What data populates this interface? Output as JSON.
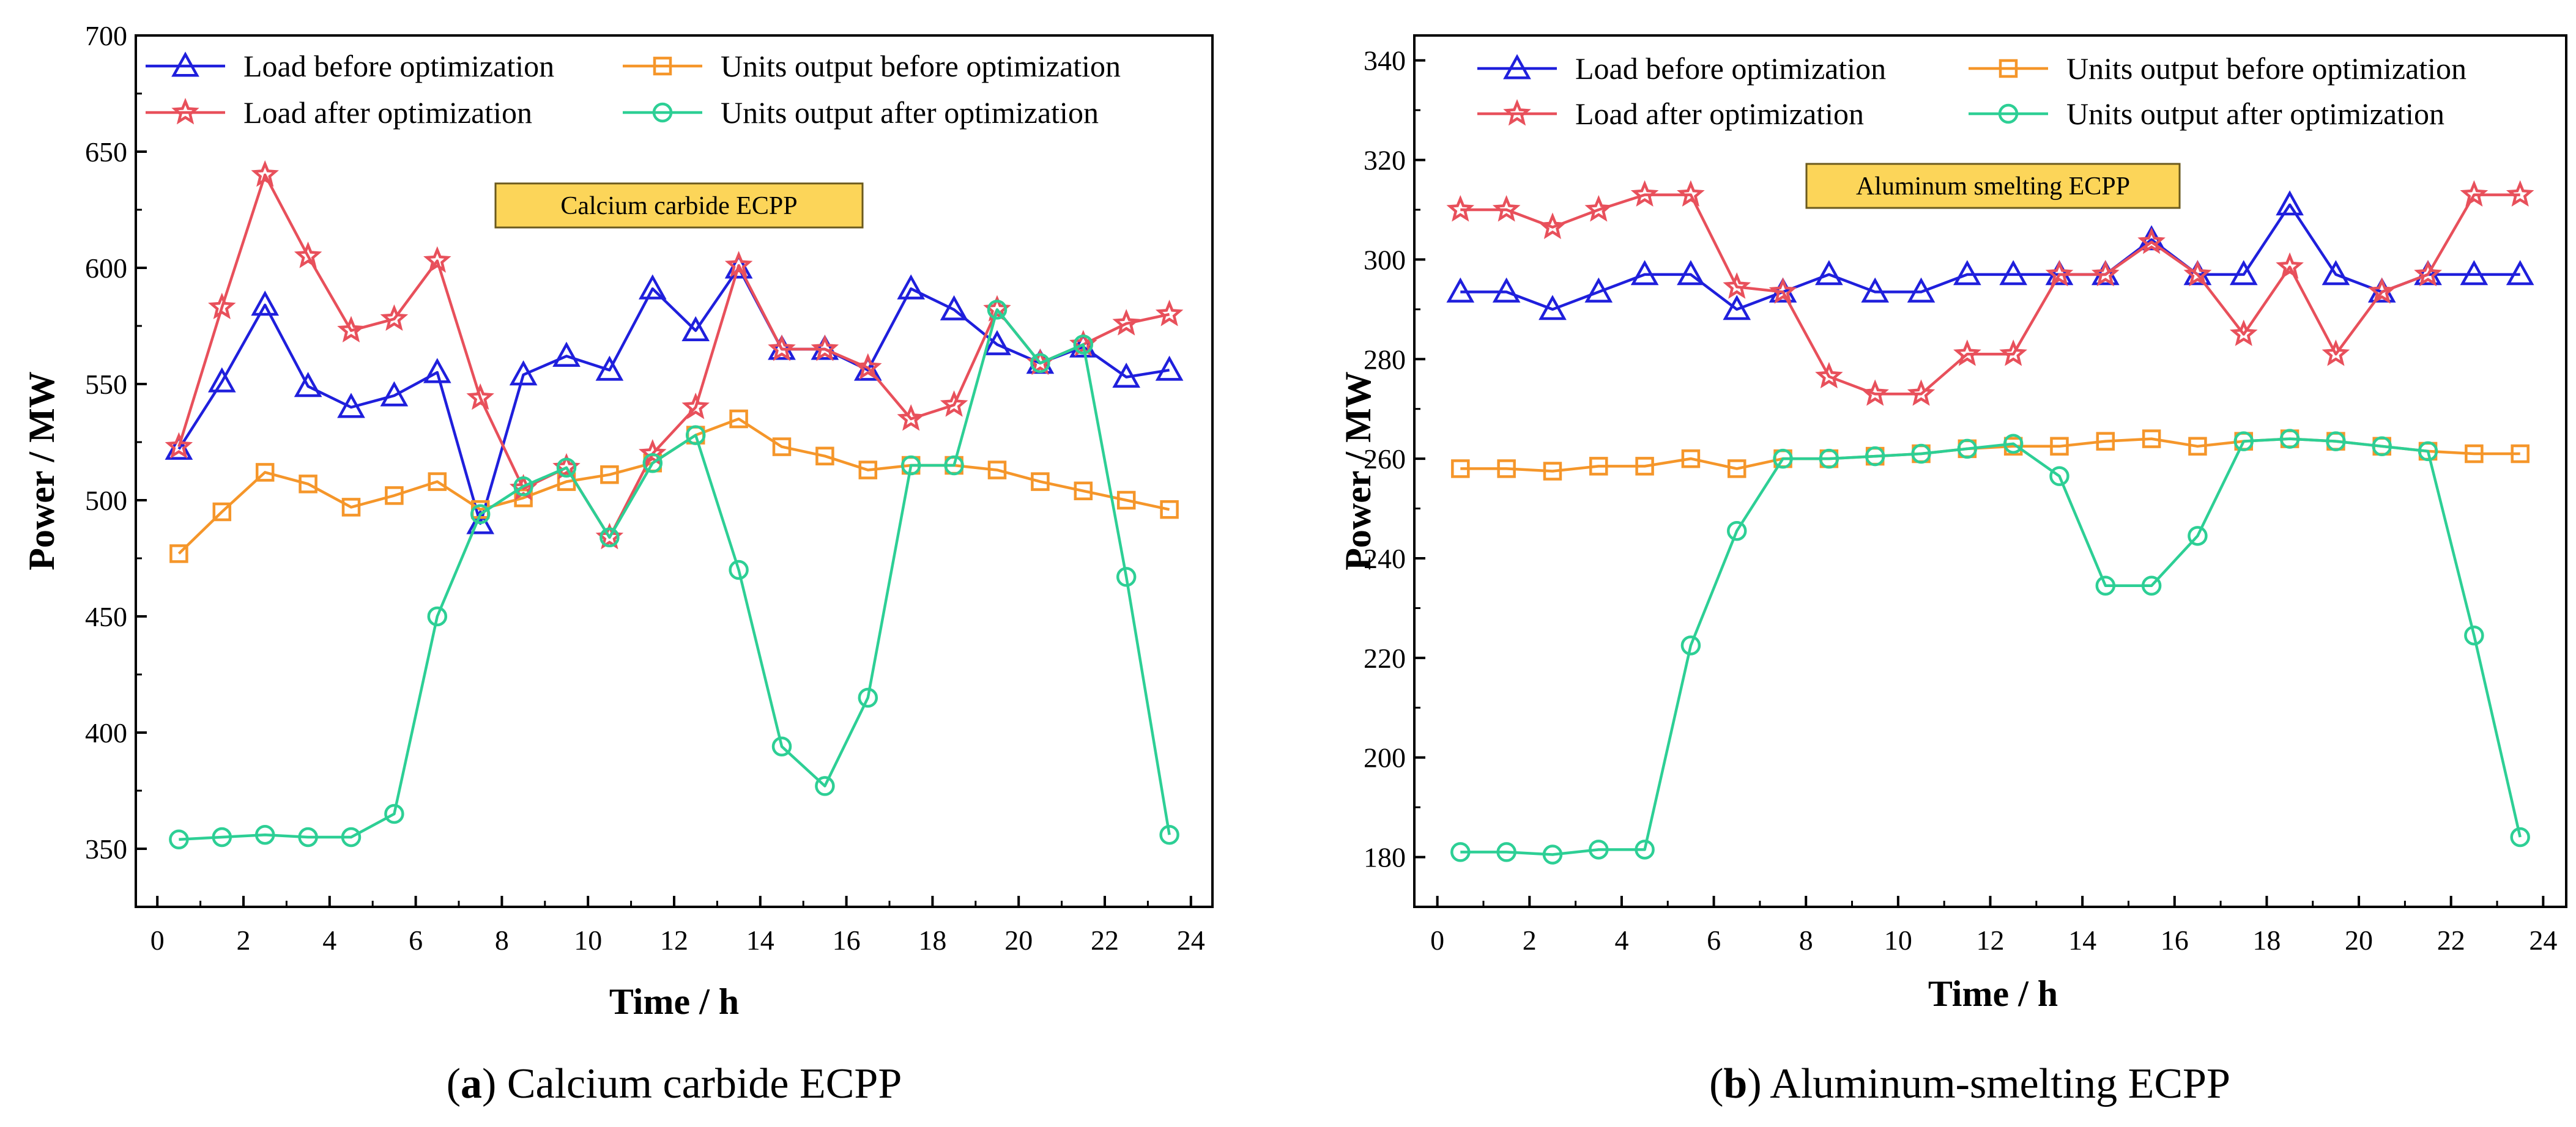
{
  "chart_data": [
    {
      "type": "line",
      "id": "a",
      "title": "Calcium carbide ECPP",
      "caption_letter": "a",
      "caption_rest": " Calcium carbide ECPP",
      "xlabel": "Time / h",
      "ylabel": "Power / MW",
      "xlim": [
        -0.5,
        24.5
      ],
      "ylim": [
        325,
        700
      ],
      "xticks": [
        0,
        2,
        4,
        6,
        8,
        10,
        12,
        14,
        16,
        18,
        20,
        22,
        24
      ],
      "yticks": [
        350,
        400,
        450,
        500,
        550,
        600,
        650,
        700
      ],
      "x": [
        0.5,
        1.5,
        2.5,
        3.5,
        4.5,
        5.5,
        6.5,
        7.5,
        8.5,
        9.5,
        10.5,
        11.5,
        12.5,
        13.5,
        14.5,
        15.5,
        16.5,
        17.5,
        18.5,
        19.5,
        20.5,
        21.5,
        22.5,
        23.5
      ],
      "legend_position": "top",
      "series": [
        {
          "name": "Load before optimization",
          "color": "#1f1fdc",
          "marker": "triangle",
          "values": [
            522,
            551,
            584,
            549,
            540,
            545,
            555,
            490,
            554,
            562,
            556,
            591,
            573,
            600,
            565,
            565,
            556,
            591,
            582,
            567,
            559,
            566,
            553,
            556
          ]
        },
        {
          "name": "Units output before optimization",
          "color": "#f5962a",
          "marker": "square",
          "values": [
            477,
            495,
            512,
            507,
            497,
            502,
            508,
            496,
            501,
            508,
            511,
            516,
            528,
            535,
            523,
            519,
            513,
            515,
            515,
            513,
            508,
            504,
            500,
            496
          ]
        },
        {
          "name": "Load after optimization",
          "color": "#e8505b",
          "marker": "star",
          "values": [
            523,
            583,
            640,
            605,
            573,
            578,
            603,
            544,
            505,
            514,
            484,
            520,
            540,
            601,
            565,
            565,
            557,
            535,
            541,
            582,
            559,
            567,
            576,
            580
          ]
        },
        {
          "name": "Units output after optimization",
          "color": "#2dcf95",
          "marker": "circle",
          "values": [
            354,
            355,
            356,
            355,
            355,
            365,
            450,
            494,
            506,
            514,
            484,
            516,
            528,
            470,
            394,
            377,
            415,
            515,
            515,
            582,
            559,
            567,
            467,
            356
          ]
        }
      ]
    },
    {
      "type": "line",
      "id": "b",
      "title": "Aluminum smelting ECPP",
      "caption_letter": "b",
      "caption_rest": " Aluminum-smelting ECPP",
      "xlabel": "Time / h",
      "ylabel": "Power / MW",
      "xlim": [
        -0.5,
        24.5
      ],
      "ylim": [
        170,
        345
      ],
      "xticks": [
        0,
        2,
        4,
        6,
        8,
        10,
        12,
        14,
        16,
        18,
        20,
        22,
        24
      ],
      "yticks": [
        180,
        200,
        220,
        240,
        260,
        280,
        300,
        320,
        340
      ],
      "x": [
        0.5,
        1.5,
        2.5,
        3.5,
        4.5,
        5.5,
        6.5,
        7.5,
        8.5,
        9.5,
        10.5,
        11.5,
        12.5,
        13.5,
        14.5,
        15.5,
        16.5,
        17.5,
        18.5,
        19.5,
        20.5,
        21.5,
        22.5,
        23.5
      ],
      "legend_position": "top",
      "series": [
        {
          "name": "Load before optimization",
          "color": "#1f1fdc",
          "marker": "triangle",
          "values": [
            293.5,
            293.5,
            290,
            293.5,
            297,
            297,
            290,
            293.5,
            297,
            293.5,
            293.5,
            297,
            297,
            297,
            297,
            304,
            297,
            297,
            311,
            297,
            293.5,
            297,
            297,
            297
          ]
        },
        {
          "name": "Units output before optimization",
          "color": "#f5962a",
          "marker": "square",
          "values": [
            258,
            258,
            257.5,
            258.5,
            258.5,
            260,
            258,
            260,
            260,
            260.5,
            261,
            262,
            262.5,
            262.5,
            263.5,
            264,
            262.5,
            263.5,
            264,
            263.5,
            262.5,
            261.5,
            261,
            261
          ]
        },
        {
          "name": "Load after optimization",
          "color": "#e8505b",
          "marker": "star",
          "values": [
            310,
            310,
            306.5,
            310,
            313,
            313,
            294.5,
            293.5,
            276.5,
            273,
            273,
            281,
            281,
            297,
            297,
            303.5,
            297,
            285,
            298.5,
            281,
            293.5,
            297,
            313,
            313
          ]
        },
        {
          "name": "Units output after optimization",
          "color": "#2dcf95",
          "marker": "circle",
          "values": [
            181,
            181,
            180.5,
            181.5,
            181.5,
            222.5,
            245.5,
            260,
            260,
            260.5,
            261,
            262,
            263,
            256.5,
            234.5,
            234.5,
            244.5,
            263.5,
            264,
            263.5,
            262.5,
            261.5,
            224.5,
            184
          ]
        }
      ]
    }
  ]
}
